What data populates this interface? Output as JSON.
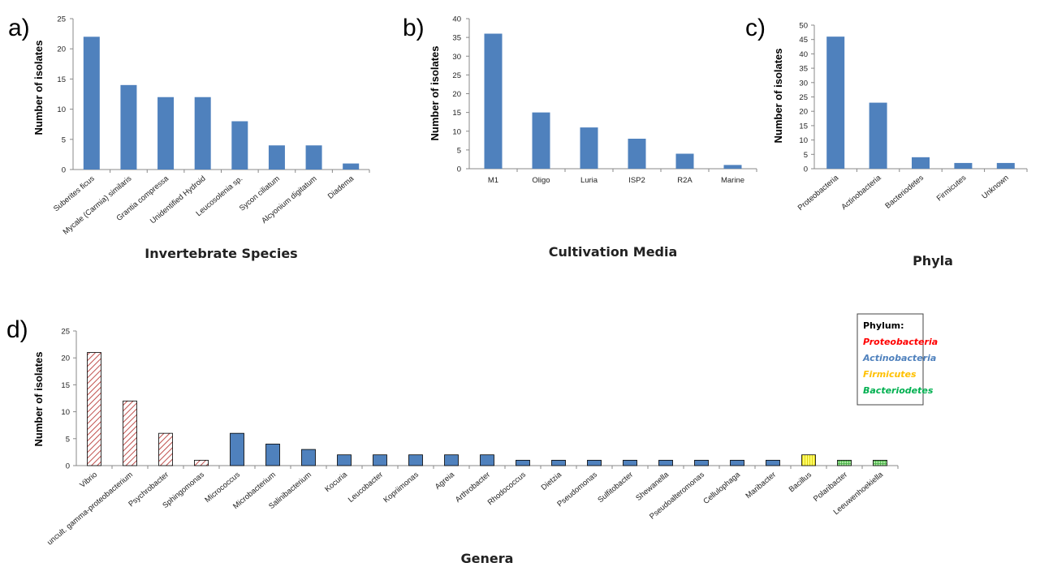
{
  "chart_data": [
    {
      "panel": "a)",
      "type": "bar",
      "xlabel": "Invertebrate Species",
      "ylabel": "Number of isolates",
      "ylim": [
        0,
        25
      ],
      "yticks": [
        0,
        5,
        10,
        15,
        20,
        25
      ],
      "categories": [
        "Suberites ficus",
        "Mycale (Carmia) similaris",
        "Grantia compressa",
        "Unidentified Hydroid",
        "Leucosolenia sp.",
        "Sycon ciliatum",
        "Alcyonium digitatum",
        "Diadema"
      ],
      "values": [
        22,
        14,
        12,
        12,
        8,
        4,
        4,
        1
      ],
      "bar_color": "#4f81bd"
    },
    {
      "panel": "b)",
      "type": "bar",
      "xlabel": "Cultivation Media",
      "ylabel": "Number of isolates",
      "ylim": [
        0,
        40
      ],
      "yticks": [
        0,
        5,
        10,
        15,
        20,
        25,
        30,
        35,
        40
      ],
      "categories": [
        "M1",
        "Oligo",
        "Luria",
        "ISP2",
        "R2A",
        "Marine"
      ],
      "values": [
        36,
        15,
        11,
        8,
        4,
        1
      ],
      "bar_color": "#4f81bd"
    },
    {
      "panel": "c)",
      "type": "bar",
      "xlabel": "Phyla",
      "ylabel": "Number of isolates",
      "ylim": [
        0,
        50
      ],
      "yticks": [
        0,
        5,
        10,
        15,
        20,
        25,
        30,
        35,
        40,
        45,
        50
      ],
      "categories": [
        "Proteobacteria",
        "Actinobacteria",
        "Bacteriodetes",
        "Firmicutes",
        "Unknown"
      ],
      "values": [
        46,
        23,
        4,
        2,
        2
      ],
      "bar_color": "#4f81bd"
    },
    {
      "panel": "d)",
      "type": "bar",
      "xlabel": "Genera",
      "ylabel": "Number of isolates",
      "ylim": [
        0,
        25
      ],
      "yticks": [
        0,
        5,
        10,
        15,
        20,
        25
      ],
      "categories": [
        "Vibrio",
        "uncult. gamma-proteobacterium",
        "Psychrobacter",
        "Sphingomonas",
        "Micrococcus",
        "Microbacterium",
        "Salinibacterium",
        "Kocuria",
        "Leucobacter",
        "Kopriimonas",
        "Agreia",
        "Arthrobacter",
        "Rhodococcus",
        "Dietzia",
        "Pseudomonas",
        "Sulfitobacter",
        "Shewanella",
        "Pseudoalteromonas",
        "Cellulophaga",
        "Maribacter",
        "Bacillus",
        "Polaribacter",
        "Leeuwenhoekiella"
      ],
      "values": [
        21,
        12,
        6,
        1,
        6,
        4,
        3,
        2,
        2,
        2,
        2,
        2,
        1,
        1,
        1,
        1,
        1,
        1,
        1,
        1,
        2,
        1,
        1
      ],
      "phylum": [
        "Proteobacteria",
        "Proteobacteria",
        "Proteobacteria",
        "Proteobacteria",
        "Actinobacteria",
        "Actinobacteria",
        "Actinobacteria",
        "Actinobacteria",
        "Actinobacteria",
        "Actinobacteria",
        "Actinobacteria",
        "Actinobacteria",
        "Actinobacteria",
        "Actinobacteria",
        "Actinobacteria",
        "Actinobacteria",
        "Actinobacteria",
        "Actinobacteria",
        "Actinobacteria",
        "Actinobacteria",
        "Firmicutes",
        "Bacteriodetes",
        "Bacteriodetes"
      ],
      "legend": {
        "title": "Phylum:",
        "placement": "top-right",
        "items": [
          {
            "name": "Proteobacteria",
            "color": "#ff0000"
          },
          {
            "name": "Actinobacteria",
            "color": "#4f81bd"
          },
          {
            "name": "Firmicutes",
            "color": "#ffc000"
          },
          {
            "name": "Bacteriodetes",
            "color": "#00b050"
          }
        ]
      }
    }
  ]
}
